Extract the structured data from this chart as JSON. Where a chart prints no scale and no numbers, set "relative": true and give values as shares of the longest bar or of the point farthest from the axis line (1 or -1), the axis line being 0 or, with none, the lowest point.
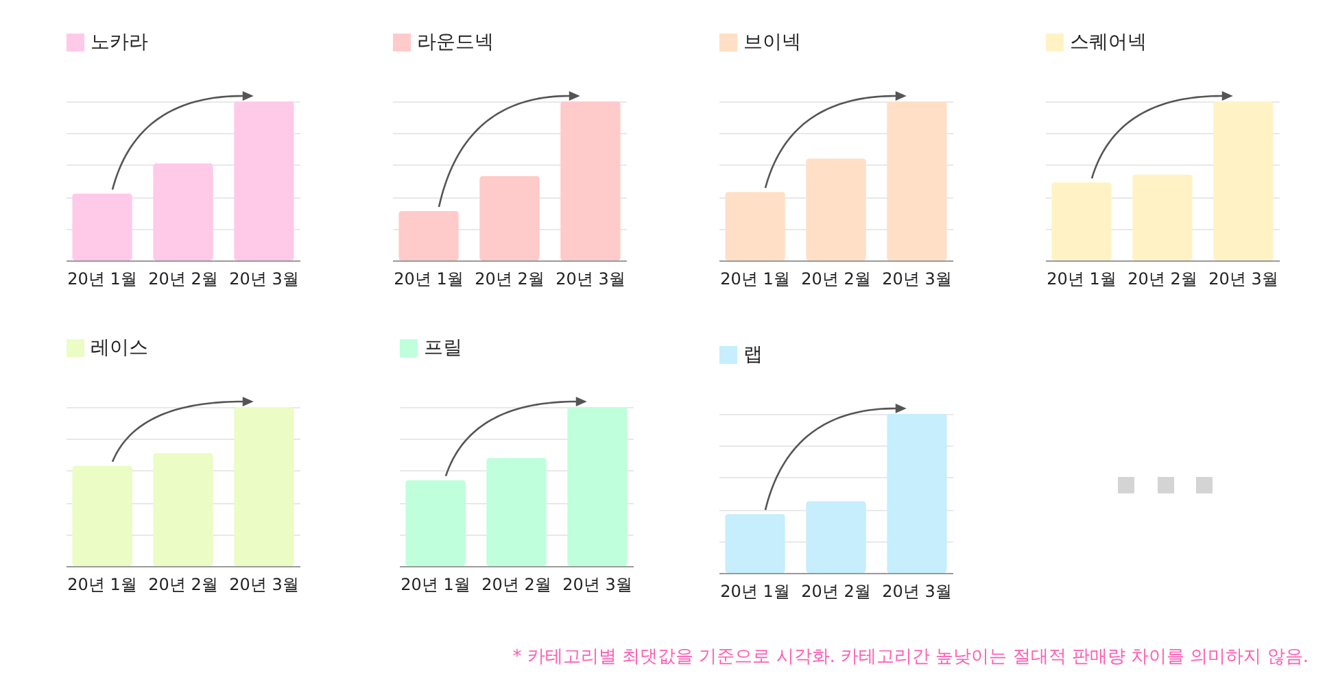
{
  "chart_data": [
    {
      "type": "bar",
      "relative": true,
      "categories": [
        "20년 1월",
        "20년 2월",
        "20년 3월"
      ],
      "grid": "y",
      "legend": "top",
      "series": [
        {
          "name": "노카라",
          "color": "#ffc9e8",
          "values": [
            0.42,
            0.61,
            1
          ]
        }
      ]
    },
    {
      "type": "bar",
      "relative": true,
      "categories": [
        "20년 1월",
        "20년 2월",
        "20년 3월"
      ],
      "grid": "y",
      "legend": "top",
      "series": [
        {
          "name": "라운드넥",
          "color": "#ffcaca",
          "values": [
            0.31,
            0.53,
            1
          ]
        }
      ]
    },
    {
      "type": "bar",
      "relative": true,
      "categories": [
        "20년 1월",
        "20년 2월",
        "20년 3월"
      ],
      "grid": "y",
      "legend": "top",
      "series": [
        {
          "name": "브이넥",
          "color": "#ffdfc6",
          "values": [
            0.43,
            0.64,
            1
          ]
        }
      ]
    },
    {
      "type": "bar",
      "relative": true,
      "categories": [
        "20년 1월",
        "20년 2월",
        "20년 3월"
      ],
      "grid": "y",
      "legend": "top",
      "series": [
        {
          "name": "스퀘어넥",
          "color": "#fff3c6",
          "values": [
            0.49,
            0.54,
            1
          ]
        }
      ]
    },
    {
      "type": "bar",
      "relative": true,
      "categories": [
        "20년 1월",
        "20년 2월",
        "20년 3월"
      ],
      "grid": "y",
      "legend": "top",
      "series": [
        {
          "name": "레이스",
          "color": "#ebfcc4",
          "values": [
            0.63,
            0.71,
            1
          ]
        }
      ]
    },
    {
      "type": "bar",
      "relative": true,
      "categories": [
        "20년 1월",
        "20년 2월",
        "20년 3월"
      ],
      "grid": "y",
      "legend": "top",
      "series": [
        {
          "name": "프릴",
          "color": "#bfffdc",
          "values": [
            0.54,
            0.68,
            1
          ]
        }
      ]
    },
    {
      "type": "bar",
      "relative": true,
      "categories": [
        "20년 1월",
        "20년 2월",
        "20년 3월"
      ],
      "grid": "y",
      "legend": "top",
      "series": [
        {
          "name": "랩",
          "color": "#c6eefc",
          "values": [
            0.37,
            0.45,
            1
          ]
        }
      ],
      "annotations": [
        "* 카테고리별 최댓값을 기준으로 시각화. 카테고리간 높낮이는 절대적 판매량 차이를 의미하지 않음."
      ]
    }
  ]
}
